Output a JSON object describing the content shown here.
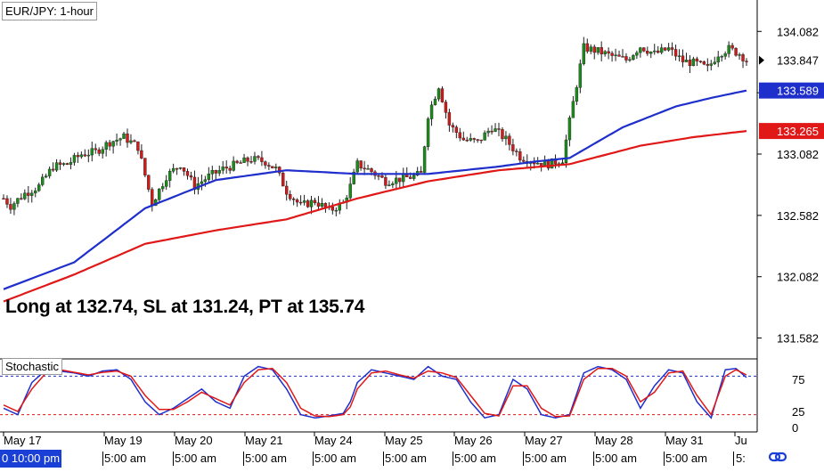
{
  "title": "EUR/JPY: 1-hour",
  "annotation": "Long at 132.74, SL at 131.24, PT at 135.74",
  "indicator_label": "Stochastic",
  "colors": {
    "bull": "#1b8c1b",
    "bear": "#d11a1a",
    "ma_fast": "#1f2fcc",
    "ma_slow": "#e01818",
    "stoch_k": "#1f2fcc",
    "stoch_d": "#e01818",
    "current_tag": "#000000"
  },
  "price_labels": {
    "current": "133.847",
    "ma_fast": "133.589",
    "ma_slow": "133.265"
  },
  "bottom_axis": {
    "first_label": "0 10:00 pm",
    "time_label": "5:00 am",
    "icon": "link-icon"
  },
  "chart_data": [
    {
      "type": "line",
      "title": "EUR/JPY: 1-hour",
      "subtype": "candlestick",
      "categories": [
        "May 17",
        "May 19",
        "May 20",
        "May 21",
        "May 24",
        "May 25",
        "May 26",
        "May 27",
        "May 28",
        "May 31",
        "Ju"
      ],
      "y_ticks": [
        "134.082",
        "133.582",
        "133.082",
        "132.582",
        "132.082",
        "131.582"
      ],
      "ylim": [
        131.47,
        134.28
      ],
      "path_keypoints": [
        [
          0,
          132.72
        ],
        [
          2,
          132.66
        ],
        [
          6,
          132.76
        ],
        [
          10,
          132.82
        ],
        [
          14,
          132.98
        ],
        [
          18,
          133.0
        ],
        [
          22,
          133.08
        ],
        [
          26,
          133.1
        ],
        [
          30,
          133.18
        ],
        [
          34,
          133.22
        ],
        [
          36,
          133.18
        ],
        [
          38,
          133.14
        ],
        [
          42,
          132.68
        ],
        [
          46,
          132.9
        ],
        [
          50,
          133.0
        ],
        [
          54,
          132.82
        ],
        [
          58,
          132.9
        ],
        [
          62,
          132.96
        ],
        [
          66,
          133.0
        ],
        [
          70,
          133.04
        ],
        [
          74,
          133.02
        ],
        [
          77,
          132.96
        ],
        [
          80,
          132.78
        ],
        [
          84,
          132.66
        ],
        [
          88,
          132.7
        ],
        [
          92,
          132.62
        ],
        [
          96,
          132.68
        ],
        [
          98,
          132.82
        ],
        [
          100,
          133.0
        ],
        [
          104,
          132.94
        ],
        [
          108,
          132.86
        ],
        [
          112,
          132.88
        ],
        [
          116,
          132.9
        ],
        [
          118,
          132.92
        ],
        [
          120,
          133.4
        ],
        [
          123,
          133.64
        ],
        [
          126,
          133.32
        ],
        [
          130,
          133.2
        ],
        [
          134,
          133.18
        ],
        [
          138,
          133.3
        ],
        [
          142,
          133.2
        ],
        [
          146,
          133.06
        ],
        [
          150,
          133.02
        ],
        [
          154,
          133.0
        ],
        [
          158,
          133.04
        ],
        [
          161,
          133.5
        ],
        [
          164,
          133.95
        ],
        [
          168,
          133.92
        ],
        [
          172,
          133.88
        ],
        [
          176,
          133.85
        ],
        [
          180,
          133.96
        ],
        [
          184,
          133.9
        ],
        [
          188,
          133.94
        ],
        [
          192,
          133.84
        ],
        [
          196,
          133.82
        ],
        [
          199,
          133.78
        ],
        [
          202,
          133.9
        ],
        [
          205,
          133.94
        ],
        [
          208,
          133.9
        ],
        [
          210,
          133.85
        ]
      ],
      "series": [
        {
          "name": "",
          "kind": "moving_average_fast",
          "points": [
            [
              0,
              131.98
            ],
            [
              20,
              132.2
            ],
            [
              40,
              132.64
            ],
            [
              60,
              132.87
            ],
            [
              80,
              132.95
            ],
            [
              100,
              132.92
            ],
            [
              120,
              132.92
            ],
            [
              140,
              132.98
            ],
            [
              150,
              133.02
            ],
            [
              160,
              133.05
            ],
            [
              175,
              133.3
            ],
            [
              190,
              133.47
            ],
            [
              200,
              133.54
            ],
            [
              210,
              133.6
            ]
          ]
        },
        {
          "name": "",
          "kind": "moving_average_slow",
          "points": [
            [
              0,
              131.88
            ],
            [
              20,
              132.1
            ],
            [
              40,
              132.35
            ],
            [
              60,
              132.46
            ],
            [
              80,
              132.55
            ],
            [
              100,
              132.72
            ],
            [
              120,
              132.86
            ],
            [
              140,
              132.95
            ],
            [
              160,
              133.0
            ],
            [
              180,
              133.15
            ],
            [
              195,
              133.22
            ],
            [
              210,
              133.27
            ]
          ]
        }
      ],
      "current_price": 133.847
    },
    {
      "type": "line",
      "title": "Stochastic",
      "y_ticks": [
        "75",
        "25",
        "0"
      ],
      "ylim": [
        0,
        100
      ],
      "levels": [
        80,
        20
      ],
      "categories": [
        "May 17",
        "May 19",
        "May 20",
        "May 21",
        "May 24",
        "May 25",
        "May 26",
        "May 27",
        "May 28",
        "May 31",
        "Ju"
      ],
      "series": [
        {
          "name": "",
          "kind": "k",
          "points": [
            [
              0,
              30
            ],
            [
              4,
              20
            ],
            [
              8,
              70
            ],
            [
              12,
              90
            ],
            [
              16,
              88
            ],
            [
              20,
              85
            ],
            [
              24,
              80
            ],
            [
              28,
              88
            ],
            [
              32,
              90
            ],
            [
              36,
              75
            ],
            [
              40,
              40
            ],
            [
              44,
              20
            ],
            [
              48,
              30
            ],
            [
              52,
              45
            ],
            [
              56,
              60
            ],
            [
              60,
              40
            ],
            [
              64,
              30
            ],
            [
              68,
              80
            ],
            [
              72,
              95
            ],
            [
              76,
              90
            ],
            [
              80,
              60
            ],
            [
              84,
              20
            ],
            [
              88,
              15
            ],
            [
              92,
              18
            ],
            [
              96,
              22
            ],
            [
              98,
              40
            ],
            [
              100,
              70
            ],
            [
              104,
              90
            ],
            [
              108,
              85
            ],
            [
              112,
              80
            ],
            [
              116,
              75
            ],
            [
              120,
              95
            ],
            [
              124,
              80
            ],
            [
              128,
              75
            ],
            [
              132,
              40
            ],
            [
              136,
              15
            ],
            [
              140,
              20
            ],
            [
              144,
              75
            ],
            [
              148,
              60
            ],
            [
              152,
              20
            ],
            [
              156,
              15
            ],
            [
              160,
              20
            ],
            [
              164,
              85
            ],
            [
              168,
              95
            ],
            [
              172,
              90
            ],
            [
              176,
              75
            ],
            [
              180,
              30
            ],
            [
              184,
              65
            ],
            [
              188,
              90
            ],
            [
              192,
              85
            ],
            [
              196,
              40
            ],
            [
              200,
              15
            ],
            [
              204,
              90
            ],
            [
              207,
              92
            ],
            [
              210,
              78
            ]
          ]
        },
        {
          "name": "",
          "kind": "d",
          "points": [
            [
              0,
              35
            ],
            [
              4,
              25
            ],
            [
              8,
              60
            ],
            [
              12,
              85
            ],
            [
              16,
              90
            ],
            [
              20,
              86
            ],
            [
              24,
              82
            ],
            [
              28,
              86
            ],
            [
              32,
              88
            ],
            [
              36,
              80
            ],
            [
              40,
              50
            ],
            [
              44,
              28
            ],
            [
              48,
              28
            ],
            [
              52,
              40
            ],
            [
              56,
              55
            ],
            [
              60,
              45
            ],
            [
              64,
              35
            ],
            [
              68,
              70
            ],
            [
              72,
              90
            ],
            [
              76,
              92
            ],
            [
              80,
              70
            ],
            [
              84,
              30
            ],
            [
              88,
              18
            ],
            [
              92,
              17
            ],
            [
              96,
              20
            ],
            [
              98,
              32
            ],
            [
              100,
              60
            ],
            [
              104,
              85
            ],
            [
              108,
              88
            ],
            [
              112,
              82
            ],
            [
              116,
              77
            ],
            [
              120,
              88
            ],
            [
              124,
              85
            ],
            [
              128,
              78
            ],
            [
              132,
              50
            ],
            [
              136,
              22
            ],
            [
              140,
              18
            ],
            [
              144,
              65
            ],
            [
              148,
              65
            ],
            [
              152,
              30
            ],
            [
              156,
              17
            ],
            [
              160,
              18
            ],
            [
              164,
              75
            ],
            [
              168,
              92
            ],
            [
              172,
              92
            ],
            [
              176,
              80
            ],
            [
              180,
              40
            ],
            [
              184,
              55
            ],
            [
              188,
              85
            ],
            [
              192,
              88
            ],
            [
              196,
              50
            ],
            [
              200,
              20
            ],
            [
              204,
              80
            ],
            [
              207,
              90
            ],
            [
              210,
              82
            ]
          ]
        }
      ]
    }
  ]
}
